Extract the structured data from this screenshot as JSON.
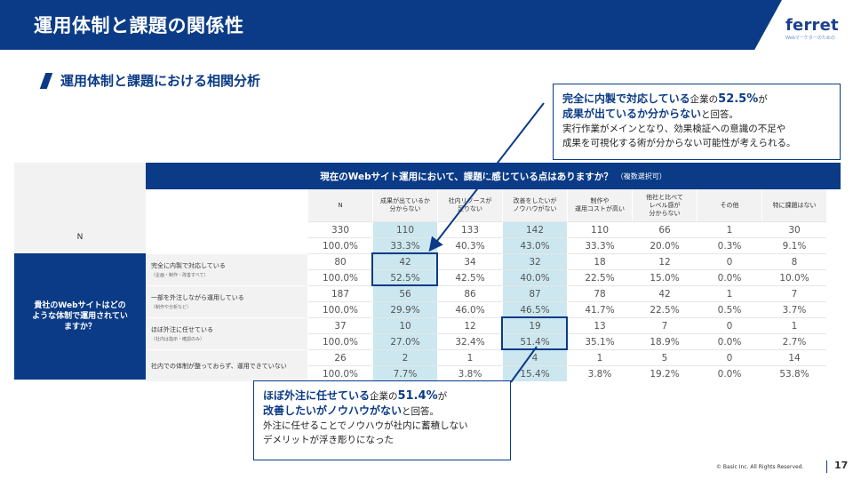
{
  "header": {
    "title": "運用体制と課題の関係性"
  },
  "logo": {
    "text": "ferret",
    "tagline": "Webマーケターのための"
  },
  "section": {
    "title": "運用体制と課題における相関分析"
  },
  "table": {
    "question": "現在のWebサイト運用において、課題に感じている点はありますか？",
    "question_note": "（複数選択可）",
    "columns": [
      [
        "N"
      ],
      [
        "成果が出ているか",
        "分からない"
      ],
      [
        "社内リソースが",
        "足りない"
      ],
      [
        "改善をしたいが",
        "ノウハウがない"
      ],
      [
        "制作や",
        "運用コストが高い"
      ],
      [
        "他社と比べて",
        "レベル感が",
        "分からない"
      ],
      [
        "その他"
      ],
      [
        "特に課題はない"
      ]
    ],
    "total_label": "N",
    "total_counts": [
      "330",
      "110",
      "133",
      "142",
      "110",
      "66",
      "1",
      "30"
    ],
    "total_pcts": [
      "100.0%",
      "33.3%",
      "40.3%",
      "43.0%",
      "33.3%",
      "20.0%",
      "0.3%",
      "9.1%"
    ],
    "side_label": "貴社のWebサイトはどのような体制で運用されていますか？",
    "rows": [
      {
        "label": "完全に内製で対応している",
        "sub": "（企画・制作・改善すべて）",
        "counts": [
          "80",
          "42",
          "34",
          "32",
          "18",
          "12",
          "0",
          "8"
        ],
        "pcts": [
          "100.0%",
          "52.5%",
          "42.5%",
          "40.0%",
          "22.5%",
          "15.0%",
          "0.0%",
          "10.0%"
        ]
      },
      {
        "label": "一部を外注しながら運用している",
        "sub": "（制作や分析など）",
        "counts": [
          "187",
          "56",
          "86",
          "87",
          "78",
          "42",
          "1",
          "7"
        ],
        "pcts": [
          "100.0%",
          "29.9%",
          "46.0%",
          "46.5%",
          "41.7%",
          "22.5%",
          "0.5%",
          "3.7%"
        ]
      },
      {
        "label": "ほぼ外注に任せている",
        "sub": "（社内は指示・確認のみ）",
        "counts": [
          "37",
          "10",
          "12",
          "19",
          "13",
          "7",
          "0",
          "1"
        ],
        "pcts": [
          "100.0%",
          "27.0%",
          "32.4%",
          "51.4%",
          "35.1%",
          "18.9%",
          "0.0%",
          "2.7%"
        ]
      },
      {
        "label": "社内での体制が整っておらず、運用できていない",
        "sub": "",
        "counts": [
          "26",
          "2",
          "1",
          "4",
          "1",
          "5",
          "0",
          "14"
        ],
        "pcts": [
          "100.0%",
          "7.7%",
          "3.8%",
          "15.4%",
          "3.8%",
          "19.2%",
          "0.0%",
          "53.8%"
        ]
      }
    ]
  },
  "callout_top": {
    "line1_em1": "完全に内製で対応している",
    "line1_mid": "企業の",
    "line1_em2": "52.5%",
    "line1_end": "が",
    "line2_em": "成果が出ているか分からない",
    "line2_end": "と回答。",
    "line3": "実行作業がメインとなり、効果検証への意識の不足や",
    "line4": "成果を可視化する術が分からない可能性が考えられる。"
  },
  "callout_bottom": {
    "line1_em1": "ほぼ外注に任せている",
    "line1_mid": "企業の",
    "line1_em2": "51.4%",
    "line1_end": "が",
    "line2_em": "改善したいがノウハウがない",
    "line2_end": "と回答。",
    "line3": "外注に任せることでノウハウが社内に蓄積しない",
    "line4": "デメリットが浮き彫りになった"
  },
  "footer": {
    "copyright": "© Basic Inc. All Rights Reserved.",
    "page": "17"
  },
  "colors": {
    "brand": "#0b3b86",
    "highlight": "#cce7ef"
  }
}
